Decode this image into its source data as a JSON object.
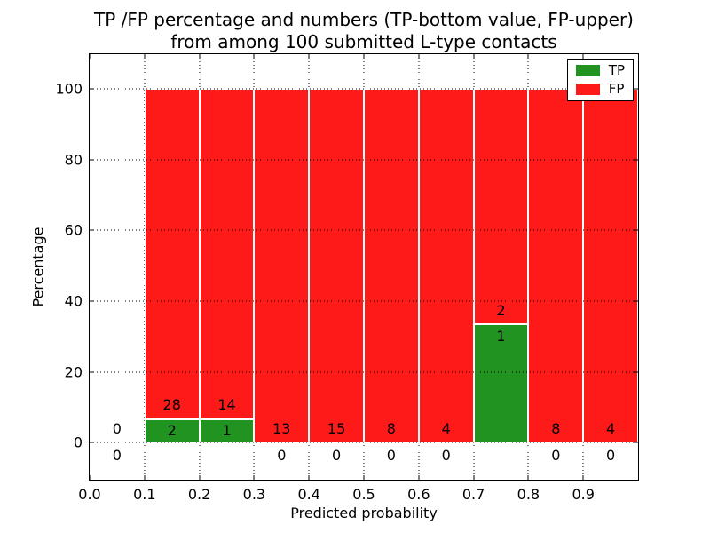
{
  "chart_data": {
    "type": "bar",
    "stacked": true,
    "title_line1": "TP /FP percentage and numbers (TP-bottom value, FP-upper)",
    "title_line2": "from among 100 submitted L-type contacts",
    "xlabel": "Predicted probability",
    "ylabel": "Percentage",
    "xlim": [
      0.0,
      1.0
    ],
    "ylim": [
      -10.5,
      109.8
    ],
    "grid": "dotted",
    "legend_position": "upper right",
    "x_tick_labels": [
      "0.0",
      "0.1",
      "0.2",
      "0.3",
      "0.4",
      "0.5",
      "0.6",
      "0.7",
      "0.8",
      "0.9"
    ],
    "y_tick_values": [
      0,
      20,
      40,
      60,
      80,
      100
    ],
    "categories": [
      "0.0-0.1",
      "0.1-0.2",
      "0.2-0.3",
      "0.3-0.4",
      "0.4-0.5",
      "0.5-0.6",
      "0.6-0.7",
      "0.7-0.8",
      "0.8-0.9",
      "0.9-1.0"
    ],
    "series": [
      {
        "name": "TP",
        "color": "#219321",
        "counts": [
          0,
          2,
          1,
          0,
          0,
          0,
          0,
          1,
          0,
          0
        ],
        "pct": [
          0,
          6.667,
          6.667,
          0,
          0,
          0,
          0,
          33.333,
          0,
          0
        ]
      },
      {
        "name": "FP",
        "color": "#ff1a1a",
        "counts": [
          0,
          28,
          14,
          13,
          15,
          8,
          4,
          2,
          8,
          4
        ],
        "pct": [
          0,
          93.333,
          93.333,
          100,
          100,
          100,
          100,
          66.667,
          100,
          100
        ]
      }
    ],
    "total_contacts": 100
  },
  "colors": {
    "tp_green": "#219321",
    "fp_red": "#ff1a1a",
    "grid": "#000000",
    "background": "#ffffff"
  }
}
